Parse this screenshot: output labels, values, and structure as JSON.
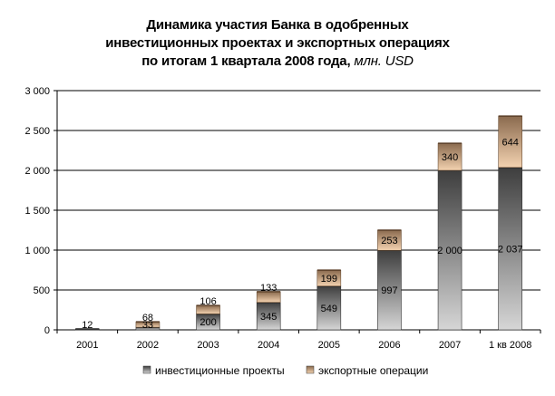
{
  "title": {
    "line1": "Динамика участия Банка в одобренных",
    "line2": "инвестиционных проектах и экспортных операциях",
    "line3": "по итогам 1 квартала 2008 года,",
    "unit": "млн. USD"
  },
  "chart_data": {
    "type": "bar",
    "stacked": true,
    "categories": [
      "2001",
      "2002",
      "2003",
      "2004",
      "2005",
      "2006",
      "2007",
      "1 кв 2008"
    ],
    "series": [
      {
        "name": "инвестиционные проекты",
        "values": [
          12,
          33,
          200,
          345,
          549,
          997,
          2000,
          2037
        ],
        "labels": [
          "12",
          "33",
          "200",
          "345",
          "549",
          "997",
          "2 000",
          "2 037"
        ],
        "color": "#5a5a5a"
      },
      {
        "name": "экспортные операции",
        "values": [
          0,
          68,
          106,
          133,
          199,
          253,
          340,
          644
        ],
        "labels": [
          "",
          "68",
          "106",
          "133",
          "199",
          "253",
          "340",
          "644"
        ],
        "color": "#c8a27c"
      }
    ],
    "ylim": [
      0,
      3000
    ],
    "yticks": [
      0,
      500,
      1000,
      1500,
      2000,
      2500,
      3000
    ],
    "ytick_labels": [
      "0",
      "500",
      "1 000",
      "1 500",
      "2 000",
      "2 500",
      "3 000"
    ],
    "grid": true,
    "legend": "bottom"
  }
}
